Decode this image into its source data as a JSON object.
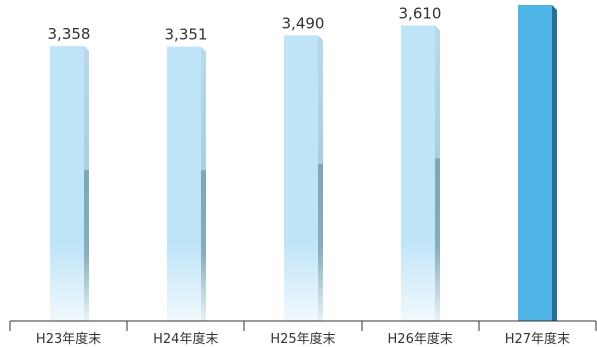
{
  "chart_data": {
    "type": "bar",
    "categories": [
      "H23年度末",
      "H24年度末",
      "H25年度末",
      "H26年度末",
      "H27年度末"
    ],
    "values": [
      3358,
      3351,
      3490,
      3610,
      null
    ],
    "data_labels": [
      "3,358",
      "3,351",
      "3,490",
      "3,610",
      ""
    ],
    "highlight_index": 4,
    "ylim": [
      0,
      3860
    ],
    "title": "",
    "xlabel": "",
    "ylabel": "",
    "grid": false,
    "colors": {
      "bar_light": "#bfe4f8",
      "bar_light_side": "#7fa7b3",
      "bar_highlight": "#4eb5e6",
      "bar_highlight_side": "#2b6f91",
      "axis": "#333333"
    }
  }
}
